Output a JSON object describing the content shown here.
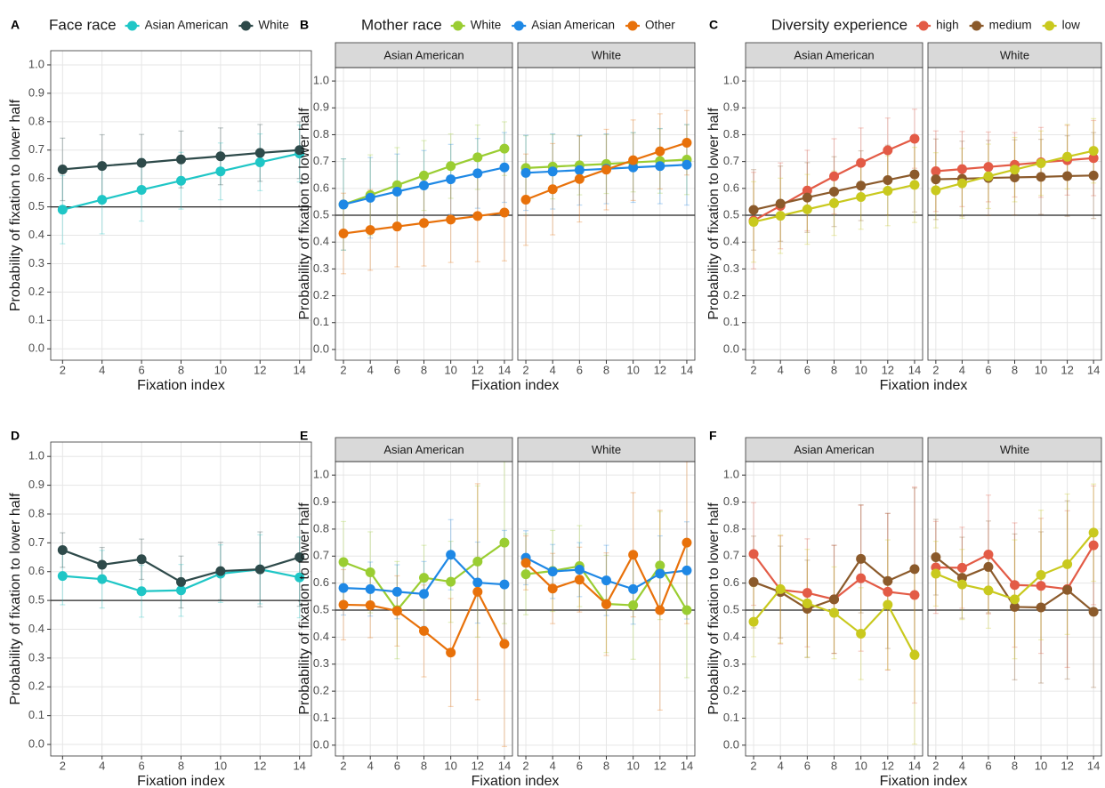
{
  "chart_data": [
    {
      "type": "line",
      "panel": "A",
      "legend_title": "Face race",
      "xlabel": "Fixation index",
      "ylabel": "Probability of fixation to lower half",
      "x": [
        2,
        4,
        6,
        8,
        10,
        12,
        14
      ],
      "xlim": [
        1.4,
        14.6
      ],
      "xticks": [
        2,
        4,
        6,
        8,
        10,
        12,
        14
      ],
      "ylim": [
        -0.04,
        1.05
      ],
      "yticks": [
        {
          "value": 0,
          "label": "0.0"
        },
        0.1,
        0.2,
        0.3,
        0.4,
        0.5,
        0.6,
        0.7,
        0.8,
        0.9,
        {
          "value": 1,
          "label": "1.0"
        }
      ],
      "hline": 0.5,
      "grid": true,
      "series": [
        {
          "name": "Asian American",
          "color": "#1fc6c6",
          "values": [
            0.49,
            0.525,
            0.56,
            0.592,
            0.625,
            0.657,
            0.688
          ],
          "errors": [
            0.12,
            0.12,
            0.11,
            0.1,
            0.1,
            0.1,
            0.1
          ]
        },
        {
          "name": "White",
          "color": "#2e4a4a",
          "values": [
            0.632,
            0.644,
            0.655,
            0.667,
            0.678,
            0.69,
            0.7
          ],
          "errors": [
            0.11,
            0.11,
            0.1,
            0.1,
            0.1,
            0.1,
            0.1
          ]
        }
      ]
    },
    {
      "type": "line",
      "panel": "B",
      "legend_title": "Mother race",
      "xlabel": "Fixation index",
      "ylabel": "Probability of fixation to lower half",
      "x": [
        2,
        4,
        6,
        8,
        10,
        12,
        14
      ],
      "xlim": [
        1.4,
        14.6
      ],
      "xticks": [
        2,
        4,
        6,
        8,
        10,
        12,
        14
      ],
      "ylim": [
        -0.04,
        1.05
      ],
      "yticks": [
        {
          "value": 0,
          "label": "0.0"
        },
        0.1,
        0.2,
        0.3,
        0.4,
        0.5,
        0.6,
        0.7,
        0.8,
        0.9,
        {
          "value": 1,
          "label": "1.0"
        }
      ],
      "hline": 0.5,
      "grid": true,
      "facets": [
        {
          "title": "Asian American",
          "series": [
            {
              "name": "White",
              "color": "#9acd32",
              "values": [
                0.54,
                0.575,
                0.612,
                0.648,
                0.683,
                0.716,
                0.748
              ],
              "errors": [
                0.17,
                0.15,
                0.14,
                0.13,
                0.12,
                0.12,
                0.1
              ]
            },
            {
              "name": "Asian American",
              "color": "#1e88e5",
              "values": [
                0.54,
                0.565,
                0.588,
                0.611,
                0.634,
                0.656,
                0.678
              ],
              "errors": [
                0.17,
                0.15,
                0.14,
                0.13,
                0.13,
                0.13,
                0.13
              ]
            },
            {
              "name": "Other",
              "color": "#e8710a",
              "values": [
                0.432,
                0.445,
                0.458,
                0.471,
                0.484,
                0.497,
                0.51
              ],
              "errors": [
                0.15,
                0.15,
                0.15,
                0.16,
                0.16,
                0.17,
                0.18
              ]
            }
          ]
        },
        {
          "title": "White",
          "series": [
            {
              "name": "White",
              "color": "#9acd32",
              "values": [
                0.676,
                0.681,
                0.686,
                0.691,
                0.697,
                0.702,
                0.707
              ],
              "errors": [
                0.12,
                0.12,
                0.11,
                0.11,
                0.11,
                0.12,
                0.13
              ]
            },
            {
              "name": "Asian American",
              "color": "#1e88e5",
              "values": [
                0.658,
                0.663,
                0.668,
                0.673,
                0.678,
                0.683,
                0.688
              ],
              "errors": [
                0.14,
                0.14,
                0.13,
                0.13,
                0.13,
                0.14,
                0.15
              ]
            },
            {
              "name": "Other",
              "color": "#e8710a",
              "values": [
                0.558,
                0.597,
                0.635,
                0.67,
                0.705,
                0.738,
                0.77
              ],
              "errors": [
                0.17,
                0.17,
                0.16,
                0.15,
                0.15,
                0.14,
                0.12
              ]
            }
          ]
        }
      ]
    },
    {
      "type": "line",
      "panel": "C",
      "legend_title": "Diversity experience",
      "xlabel": "Fixation index",
      "ylabel": "Probability of fixation to lower half",
      "x": [
        2,
        4,
        6,
        8,
        10,
        12,
        14
      ],
      "xlim": [
        1.4,
        14.6
      ],
      "xticks": [
        2,
        4,
        6,
        8,
        10,
        12,
        14
      ],
      "ylim": [
        -0.04,
        1.05
      ],
      "yticks": [
        {
          "value": 0,
          "label": "0.0"
        },
        0.1,
        0.2,
        0.3,
        0.4,
        0.5,
        0.6,
        0.7,
        0.8,
        0.9,
        {
          "value": 1,
          "label": "1.0"
        }
      ],
      "hline": 0.5,
      "grid": true,
      "facets": [
        {
          "title": "Asian American",
          "series": [
            {
              "name": "high",
              "color": "#e35b46",
              "values": [
                0.48,
                0.535,
                0.592,
                0.645,
                0.695,
                0.742,
                0.785
              ],
              "errors": [
                0.18,
                0.16,
                0.15,
                0.14,
                0.13,
                0.12,
                0.11
              ]
            },
            {
              "name": "medium",
              "color": "#8b5a2b",
              "values": [
                0.52,
                0.543,
                0.566,
                0.588,
                0.61,
                0.631,
                0.652
              ],
              "errors": [
                0.15,
                0.14,
                0.13,
                0.13,
                0.13,
                0.13,
                0.14
              ]
            },
            {
              "name": "low",
              "color": "#c9c91e",
              "values": [
                0.475,
                0.498,
                0.522,
                0.545,
                0.568,
                0.591,
                0.613
              ],
              "errors": [
                0.15,
                0.14,
                0.13,
                0.12,
                0.12,
                0.13,
                0.14
              ]
            }
          ]
        },
        {
          "title": "White",
          "series": [
            {
              "name": "high",
              "color": "#e35b46",
              "values": [
                0.664,
                0.672,
                0.68,
                0.688,
                0.697,
                0.705,
                0.713
              ],
              "errors": [
                0.15,
                0.14,
                0.13,
                0.12,
                0.13,
                0.13,
                0.14
              ]
            },
            {
              "name": "medium",
              "color": "#8b5a2b",
              "values": [
                0.634,
                0.636,
                0.639,
                0.641,
                0.643,
                0.646,
                0.648
              ],
              "errors": [
                0.15,
                0.14,
                0.14,
                0.14,
                0.14,
                0.15,
                0.16
              ]
            },
            {
              "name": "low",
              "color": "#c9c91e",
              "values": [
                0.593,
                0.619,
                0.645,
                0.67,
                0.694,
                0.718,
                0.74
              ],
              "errors": [
                0.14,
                0.13,
                0.12,
                0.12,
                0.12,
                0.12,
                0.12
              ]
            }
          ]
        }
      ]
    },
    {
      "type": "line",
      "panel": "D",
      "xlabel": "Fixation index",
      "ylabel": "Probability of fixation to lower half",
      "x": [
        2,
        4,
        6,
        8,
        10,
        12,
        14
      ],
      "xlim": [
        1.4,
        14.6
      ],
      "xticks": [
        2,
        4,
        6,
        8,
        10,
        12,
        14
      ],
      "ylim": [
        -0.04,
        1.05
      ],
      "yticks": [
        {
          "value": 0,
          "label": "0.0"
        },
        0.1,
        0.2,
        0.3,
        0.4,
        0.5,
        0.6,
        0.7,
        0.8,
        0.9,
        {
          "value": 1,
          "label": "1.0"
        }
      ],
      "hline": 0.5,
      "grid": true,
      "series": [
        {
          "color": "#1fc6c6",
          "values": [
            0.585,
            0.574,
            0.532,
            0.535,
            0.593,
            0.608,
            0.58
          ],
          "errors": [
            0.1,
            0.1,
            0.09,
            0.09,
            0.1,
            0.12,
            0.14
          ]
        },
        {
          "color": "#2e4a4a",
          "values": [
            0.675,
            0.624,
            0.643,
            0.564,
            0.602,
            0.608,
            0.65
          ],
          "errors": [
            0.06,
            0.06,
            0.07,
            0.09,
            0.1,
            0.13,
            0.17
          ]
        }
      ]
    },
    {
      "type": "line",
      "panel": "E",
      "xlabel": "Fixation index",
      "ylabel": "Probability of fixation to lower half",
      "x": [
        2,
        4,
        6,
        8,
        10,
        12,
        14
      ],
      "xlim": [
        1.4,
        14.6
      ],
      "xticks": [
        2,
        4,
        6,
        8,
        10,
        12,
        14
      ],
      "ylim": [
        -0.04,
        1.05
      ],
      "yticks": [
        {
          "value": 0,
          "label": "0.0"
        },
        0.1,
        0.2,
        0.3,
        0.4,
        0.5,
        0.6,
        0.7,
        0.8,
        0.9,
        {
          "value": 1,
          "label": "1.0"
        }
      ],
      "hline": 0.5,
      "grid": true,
      "facets": [
        {
          "title": "Asian American",
          "series": [
            {
              "color": "#9acd32",
              "values": [
                0.678,
                0.64,
                0.5,
                0.62,
                0.605,
                0.68,
                0.75
              ],
              "errors": [
                0.15,
                0.15,
                0.18,
                0.12,
                0.15,
                0.28,
                0.3
              ]
            },
            {
              "color": "#1e88e5",
              "values": [
                0.582,
                0.578,
                0.568,
                0.56,
                0.705,
                0.602,
                0.595
              ],
              "errors": [
                0.1,
                0.1,
                0.1,
                0.12,
                0.13,
                0.15,
                0.2
              ]
            },
            {
              "color": "#e8710a",
              "values": [
                0.52,
                0.518,
                0.497,
                0.423,
                0.343,
                0.568,
                0.375
              ],
              "errors": [
                0.13,
                0.12,
                0.13,
                0.17,
                0.2,
                0.4,
                0.38
              ]
            }
          ]
        },
        {
          "title": "White",
          "series": [
            {
              "color": "#9acd32",
              "values": [
                0.633,
                0.645,
                0.663,
                0.523,
                0.518,
                0.665,
                0.5
              ],
              "errors": [
                0.15,
                0.15,
                0.15,
                0.18,
                0.2,
                0.2,
                0.25
              ]
            },
            {
              "color": "#1e88e5",
              "values": [
                0.694,
                0.643,
                0.65,
                0.61,
                0.578,
                0.635,
                0.647
              ],
              "errors": [
                0.1,
                0.1,
                0.1,
                0.13,
                0.13,
                0.14,
                0.18
              ]
            },
            {
              "color": "#e8710a",
              "values": [
                0.675,
                0.58,
                0.613,
                0.522,
                0.705,
                0.5,
                0.75
              ],
              "errors": [
                0.1,
                0.13,
                0.12,
                0.19,
                0.23,
                0.37,
                0.3
              ]
            }
          ]
        }
      ]
    },
    {
      "type": "line",
      "panel": "F",
      "xlabel": "Fixation index",
      "ylabel": "Probability of fixation to lower half",
      "x": [
        2,
        4,
        6,
        8,
        10,
        12,
        14
      ],
      "xlim": [
        1.4,
        14.6
      ],
      "xticks": [
        2,
        4,
        6,
        8,
        10,
        12,
        14
      ],
      "ylim": [
        -0.04,
        1.05
      ],
      "yticks": [
        {
          "value": 0,
          "label": "0.0"
        },
        0.1,
        0.2,
        0.3,
        0.4,
        0.5,
        0.6,
        0.7,
        0.8,
        0.9,
        {
          "value": 1,
          "label": "1.0"
        }
      ],
      "hline": 0.5,
      "grid": true,
      "facets": [
        {
          "title": "Asian American",
          "series": [
            {
              "color": "#e35b46",
              "values": [
                0.708,
                0.575,
                0.564,
                0.54,
                0.618,
                0.568,
                0.556
              ],
              "errors": [
                0.19,
                0.2,
                0.2,
                0.2,
                0.27,
                0.29,
                0.4
              ]
            },
            {
              "color": "#8b5a2b",
              "values": [
                0.604,
                0.567,
                0.505,
                0.54,
                0.69,
                0.608,
                0.652
              ],
              "errors": [
                0.17,
                0.17,
                0.18,
                0.2,
                0.2,
                0.25,
                0.3
              ]
            },
            {
              "color": "#c9c91e",
              "values": [
                0.457,
                0.578,
                0.525,
                0.49,
                0.413,
                0.52,
                0.334
              ],
              "errors": [
                0.13,
                0.2,
                0.2,
                0.17,
                0.17,
                0.24,
                0.33
              ]
            }
          ]
        },
        {
          "title": "White",
          "series": [
            {
              "color": "#e35b46",
              "values": [
                0.658,
                0.657,
                0.706,
                0.593,
                0.59,
                0.578,
                0.74
              ],
              "errors": [
                0.17,
                0.15,
                0.22,
                0.23,
                0.25,
                0.29,
                0.22
              ]
            },
            {
              "color": "#8b5a2b",
              "values": [
                0.696,
                0.62,
                0.66,
                0.512,
                0.51,
                0.575,
                0.494
              ],
              "errors": [
                0.14,
                0.15,
                0.17,
                0.27,
                0.28,
                0.33,
                0.28
              ]
            },
            {
              "color": "#c9c91e",
              "values": [
                0.635,
                0.595,
                0.573,
                0.54,
                0.63,
                0.67,
                0.787
              ],
              "errors": [
                0.12,
                0.13,
                0.14,
                0.22,
                0.24,
                0.26,
                0.18
              ]
            }
          ]
        }
      ]
    }
  ]
}
